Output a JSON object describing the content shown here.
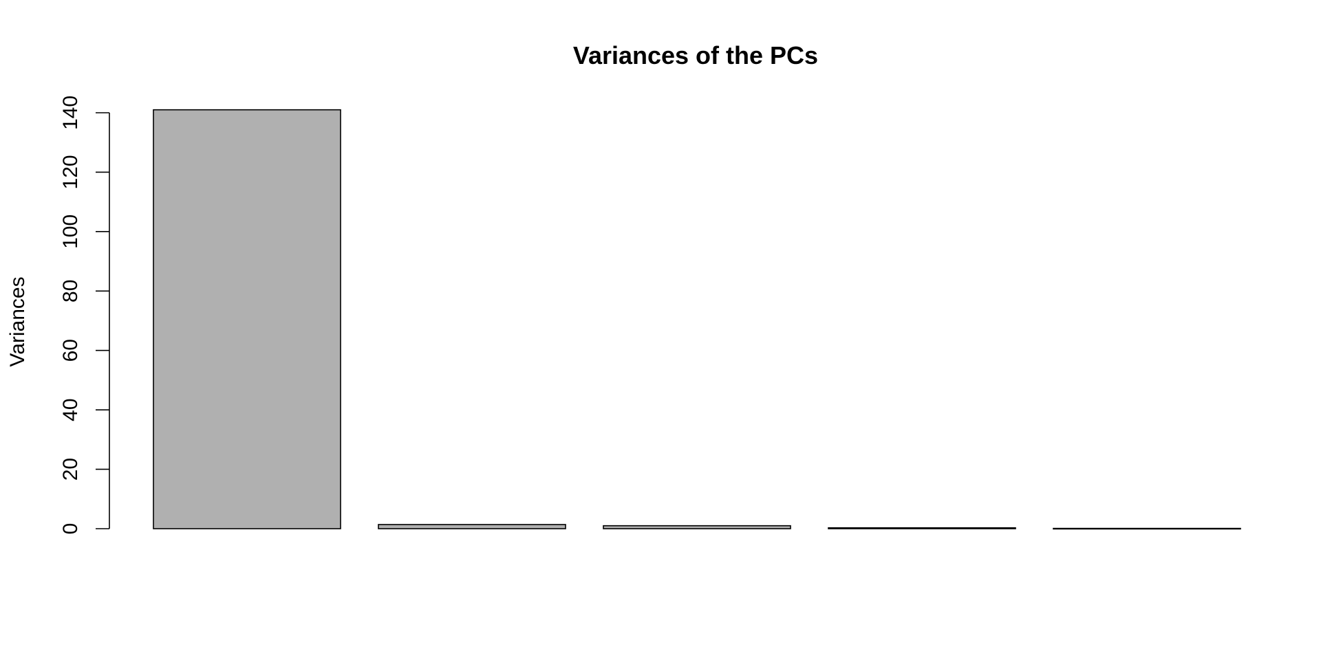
{
  "chart_data": {
    "type": "bar",
    "title": "Variances of the PCs",
    "xlabel": "",
    "ylabel": "Variances",
    "categories": [
      "",
      "",
      "",
      "",
      ""
    ],
    "values": [
      141,
      1.4,
      1.0,
      0.3,
      0.1
    ],
    "ylim": [
      0,
      140
    ],
    "yticks": [
      0,
      20,
      40,
      60,
      80,
      100,
      120,
      140
    ],
    "bar_color": "#b0b0b0",
    "grid": false,
    "legend": "none"
  }
}
